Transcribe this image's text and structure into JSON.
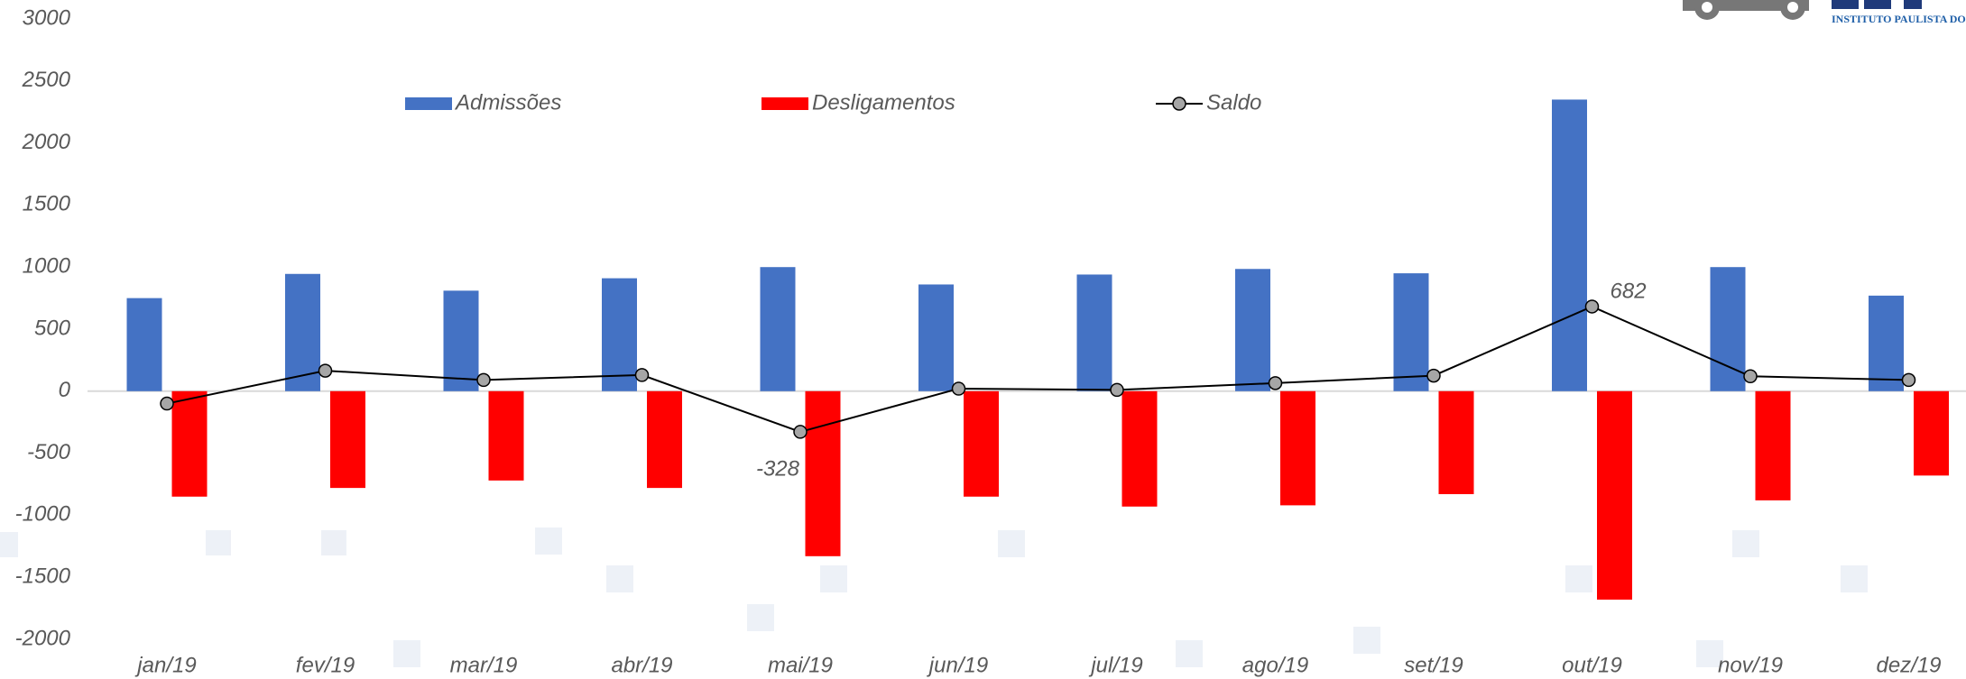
{
  "chart_data": {
    "type": "bar-line",
    "logo_text": "INSTITUTO PAULISTA DO",
    "categories": [
      "jan/19",
      "fev/19",
      "mar/19",
      "abr/19",
      "mai/19",
      "jun/19",
      "jul/19",
      "ago/19",
      "set/19",
      "out/19",
      "nov/19",
      "dez/19"
    ],
    "series": [
      {
        "name": "Admissões",
        "type": "bar",
        "color": "#4472c4",
        "values": [
          750,
          945,
          810,
          910,
          1000,
          860,
          940,
          985,
          950,
          2350,
          1000,
          770
        ]
      },
      {
        "name": "Desligamentos",
        "type": "bar",
        "color": "#ff0000",
        "values": [
          -850,
          -780,
          -720,
          -780,
          -1330,
          -850,
          -930,
          -920,
          -830,
          -1680,
          -880,
          -680
        ]
      },
      {
        "name": "Saldo",
        "type": "line",
        "color": "#000000",
        "marker_color": "#a6a6a6",
        "values": [
          -100,
          165,
          90,
          130,
          -328,
          20,
          10,
          65,
          125,
          682,
          120,
          90
        ],
        "value_labels": [
          null,
          null,
          null,
          null,
          "-328",
          null,
          null,
          null,
          null,
          "682",
          null,
          null
        ]
      }
    ],
    "ylim": [
      -2000,
      3000
    ],
    "yticks": [
      -2000,
      -1500,
      -1000,
      -500,
      0,
      500,
      1000,
      1500,
      2000,
      2500,
      3000
    ],
    "legend": "top"
  }
}
